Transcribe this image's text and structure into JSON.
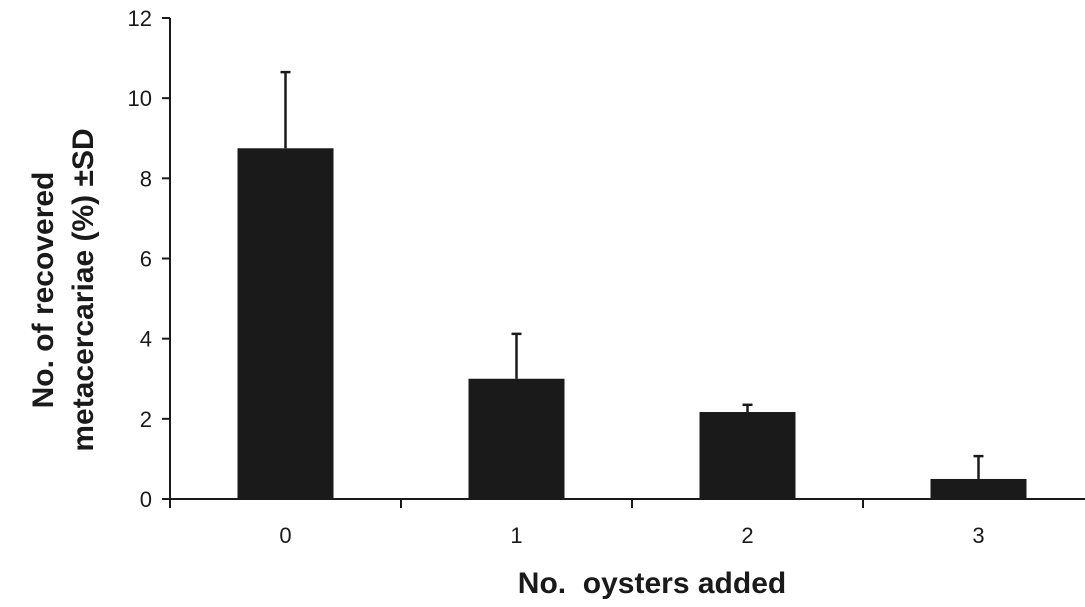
{
  "chart_data": {
    "type": "bar",
    "title": "",
    "categories": [
      "0",
      "1",
      "2",
      "3"
    ],
    "series": [
      {
        "values": [
          8.75,
          3.0,
          2.17,
          0.5
        ],
        "error_plus": [
          1.9,
          1.12,
          0.18,
          0.57
        ]
      }
    ],
    "xlabel": "No.  oysters added",
    "ylabel_lines": [
      "No. of recovered",
      "metacercariae (%) ±SD"
    ],
    "ylim": [
      0,
      12
    ],
    "yticks": [
      0,
      2,
      4,
      6,
      8,
      10,
      12
    ],
    "grid": false,
    "legend": "none",
    "bar_color": "#1a1a1a",
    "axis_color": "#1a1a1a"
  }
}
